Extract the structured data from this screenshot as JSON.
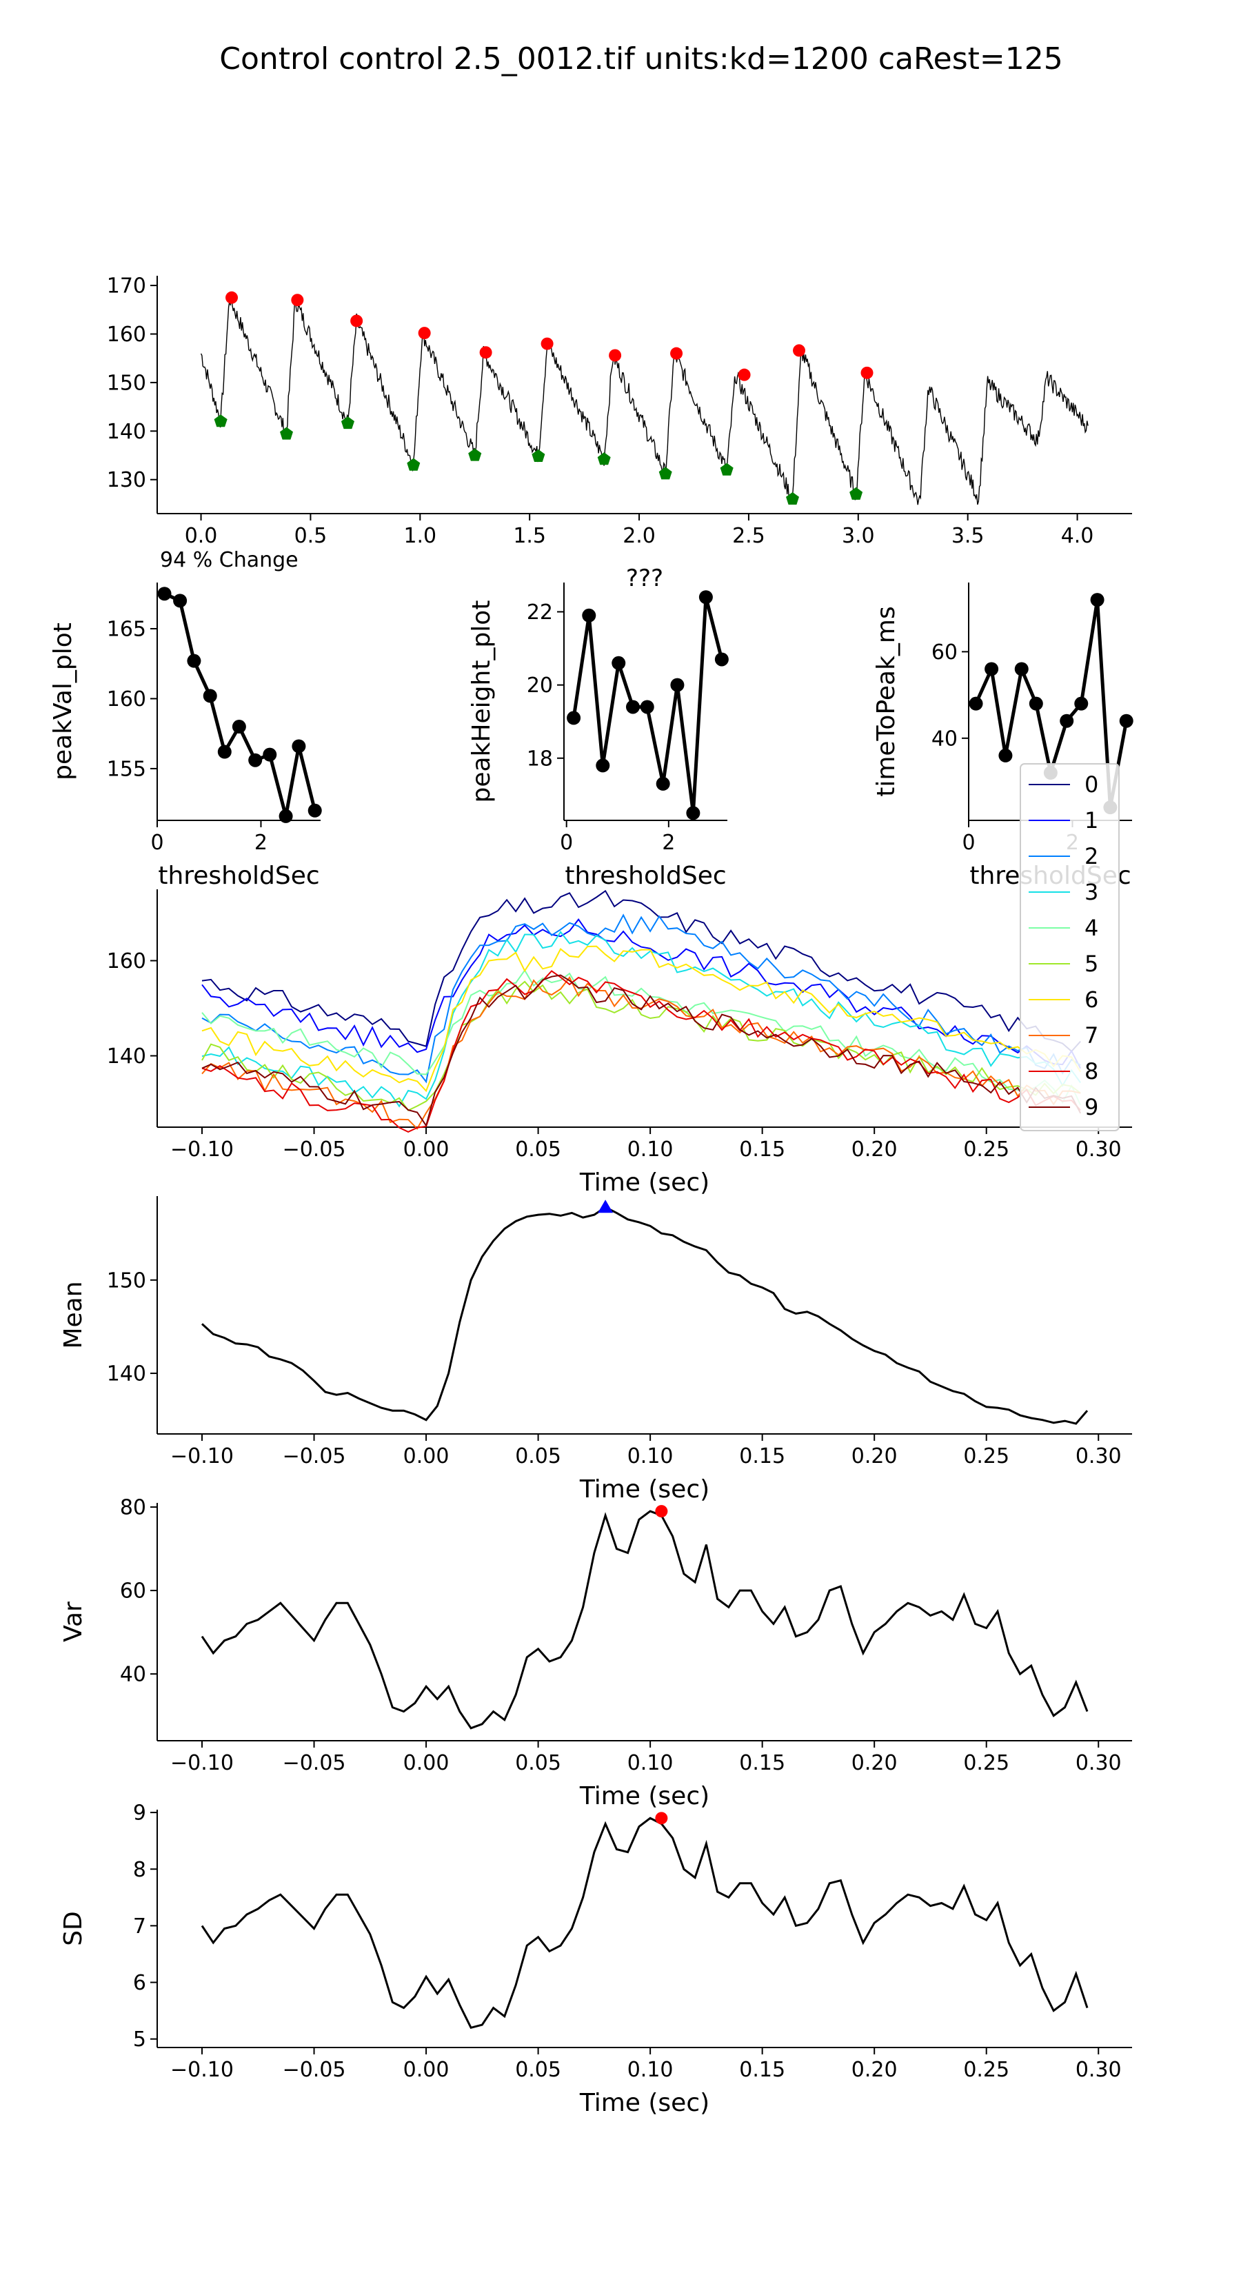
{
  "figure": {
    "title": "Control control 2.5_0012.tif units:kd=1200 caRest=125"
  },
  "chart_data": [
    {
      "id": "raw",
      "type": "line",
      "xlim": [
        -0.2,
        4.25
      ],
      "ylim": [
        123,
        172
      ],
      "xticks": [
        0.0,
        0.5,
        1.0,
        1.5,
        2.0,
        2.5,
        3.0,
        3.5,
        4.0
      ],
      "xtick_labels": [
        "0.0",
        "0.5",
        "1.0",
        "1.5",
        "2.0",
        "2.5",
        "3.0",
        "3.5",
        "4.0"
      ],
      "yticks": [
        130,
        140,
        150,
        160,
        170
      ],
      "xlabel": "",
      "ylabel": "",
      "annotation": "94 % Change",
      "peaks": {
        "color": "#ff0000",
        "x": [
          0.14,
          0.44,
          0.71,
          1.02,
          1.3,
          1.58,
          1.89,
          2.17,
          2.48,
          2.73,
          3.04
        ],
        "y": [
          167.5,
          167.0,
          162.7,
          160.2,
          156.2,
          158.0,
          155.6,
          156.0,
          151.6,
          156.6,
          152.0
        ]
      },
      "troughs": {
        "color": "#008000",
        "x": [
          0.09,
          0.39,
          0.67,
          0.97,
          1.25,
          1.54,
          1.84,
          2.12,
          2.4,
          2.7,
          2.99
        ],
        "y": [
          142.0,
          139.4,
          141.6,
          133.0,
          135.0,
          134.8,
          134.2,
          131.2,
          132.0,
          126.0,
          127.0
        ]
      },
      "trace_onsets": [
        0.09,
        0.39,
        0.67,
        0.97,
        1.25,
        1.54,
        1.84,
        2.12,
        2.4,
        2.7,
        2.99,
        3.28,
        3.55,
        3.82
      ],
      "trace_peaks": [
        167.5,
        167.0,
        162.7,
        160.2,
        156.2,
        158.0,
        155.6,
        156.0,
        151.6,
        156.6,
        152.0,
        149.0,
        150.0,
        151.0
      ],
      "trace_troughs": [
        142.0,
        139.4,
        141.6,
        133.0,
        135.0,
        134.8,
        134.2,
        131.2,
        132.0,
        126.0,
        127.0,
        125.0,
        126.0,
        138.0
      ]
    },
    {
      "id": "peakVal",
      "type": "line",
      "xlim": [
        0,
        3.15
      ],
      "ylim": [
        151.3,
        168.3
      ],
      "xticks": [
        0,
        2
      ],
      "xtick_labels": [
        "0",
        "2"
      ],
      "yticks": [
        155,
        160,
        165
      ],
      "xlabel": "thresholdSec",
      "ylabel": "peakVal_plot",
      "x": [
        0.14,
        0.44,
        0.71,
        1.02,
        1.3,
        1.58,
        1.89,
        2.17,
        2.48,
        2.73,
        3.04
      ],
      "y": [
        167.5,
        167.0,
        162.7,
        160.2,
        156.2,
        158.0,
        155.6,
        156.0,
        151.6,
        156.6,
        152.0
      ]
    },
    {
      "id": "peakHeight",
      "type": "line",
      "xlim": [
        -0.05,
        3.15
      ],
      "ylim": [
        16.3,
        22.8
      ],
      "xticks": [
        0,
        2
      ],
      "xtick_labels": [
        "0",
        "2"
      ],
      "yticks": [
        18,
        20,
        22
      ],
      "xlabel": "thresholdSec",
      "ylabel": "peakHeight_plot",
      "top_label": "???",
      "x": [
        0.14,
        0.44,
        0.71,
        1.02,
        1.3,
        1.58,
        1.89,
        2.17,
        2.48,
        2.73,
        3.04
      ],
      "y": [
        19.1,
        21.9,
        17.8,
        20.6,
        19.4,
        19.4,
        17.3,
        20.0,
        16.5,
        22.4,
        20.7
      ]
    },
    {
      "id": "timeToPeak",
      "type": "line",
      "xlim": [
        0,
        3.15
      ],
      "ylim": [
        21,
        76
      ],
      "xticks": [
        0,
        2
      ],
      "xtick_labels": [
        "0",
        "2"
      ],
      "yticks": [
        40,
        60
      ],
      "xlabel": "thresholdSec",
      "ylabel": "timeToPeak_ms",
      "x": [
        0.14,
        0.44,
        0.71,
        1.02,
        1.3,
        1.58,
        1.89,
        2.17,
        2.48,
        2.73,
        3.04
      ],
      "y": [
        48,
        56,
        36,
        56,
        48,
        32,
        44,
        48,
        72,
        24,
        44
      ]
    },
    {
      "id": "overlay",
      "type": "line",
      "xlim": [
        -0.12,
        0.315
      ],
      "ylim": [
        125,
        175
      ],
      "xticks": [
        -0.1,
        -0.05,
        0.0,
        0.05,
        0.1,
        0.15,
        0.2,
        0.25,
        0.3
      ],
      "xtick_labels": [
        "−0.10",
        "−0.05",
        "0.00",
        "0.05",
        "0.10",
        "0.15",
        "0.20",
        "0.25",
        "0.30"
      ],
      "yticks": [
        140,
        160
      ],
      "xlabel": "Time (sec)",
      "ylabel": "",
      "legend_position": "right",
      "series": [
        {
          "name": "0",
          "color": "#00007f",
          "pre": 156,
          "post_peak": 173,
          "end": 142,
          "tpeak": 0.08
        },
        {
          "name": "1",
          "color": "#0000ff",
          "pre": 153,
          "post_peak": 167,
          "end": 138,
          "tpeak": 0.07
        },
        {
          "name": "2",
          "color": "#0080ff",
          "pre": 148,
          "post_peak": 168,
          "end": 136,
          "tpeak": 0.1
        },
        {
          "name": "3",
          "color": "#15e0e6",
          "pre": 142,
          "post_peak": 165,
          "end": 134,
          "tpeak": 0.07
        },
        {
          "name": "4",
          "color": "#7cffa5",
          "pre": 149,
          "post_peak": 157,
          "end": 131,
          "tpeak": 0.06
        },
        {
          "name": "5",
          "color": "#9fe82a",
          "pre": 141,
          "post_peak": 154,
          "end": 131,
          "tpeak": 0.05
        },
        {
          "name": "6",
          "color": "#ffe600",
          "pre": 145,
          "post_peak": 162,
          "end": 137,
          "tpeak": 0.09
        },
        {
          "name": "7",
          "color": "#ff6a00",
          "pre": 138,
          "post_peak": 155,
          "end": 130,
          "tpeak": 0.06
        },
        {
          "name": "8",
          "color": "#e60000",
          "pre": 137,
          "post_peak": 156,
          "end": 128,
          "tpeak": 0.06
        },
        {
          "name": "9",
          "color": "#7f0000",
          "pre": 139,
          "post_peak": 155,
          "end": 129,
          "tpeak": 0.06
        }
      ]
    },
    {
      "id": "mean",
      "type": "line",
      "xlim": [
        -0.12,
        0.315
      ],
      "ylim": [
        133.5,
        159
      ],
      "xticks": [
        -0.1,
        -0.05,
        0.0,
        0.05,
        0.1,
        0.15,
        0.2,
        0.25,
        0.3
      ],
      "xtick_labels": [
        "−0.10",
        "−0.05",
        "0.00",
        "0.05",
        "0.10",
        "0.15",
        "0.20",
        "0.25",
        "0.30"
      ],
      "yticks": [
        140,
        150
      ],
      "xlabel": "Time (sec)",
      "ylabel": "Mean",
      "marker": {
        "x": 0.08,
        "y": 157.8,
        "shape": "triangle",
        "color": "#0000ff"
      },
      "x": [
        -0.1,
        -0.095,
        -0.09,
        -0.085,
        -0.08,
        -0.075,
        -0.07,
        -0.065,
        -0.06,
        -0.055,
        -0.05,
        -0.045,
        -0.04,
        -0.035,
        -0.03,
        -0.025,
        -0.02,
        -0.015,
        -0.01,
        -0.005,
        0.0,
        0.005,
        0.01,
        0.015,
        0.02,
        0.025,
        0.03,
        0.035,
        0.04,
        0.045,
        0.05,
        0.055,
        0.06,
        0.065,
        0.07,
        0.075,
        0.08,
        0.085,
        0.09,
        0.095,
        0.1,
        0.105,
        0.11,
        0.115,
        0.12,
        0.125,
        0.13,
        0.135,
        0.14,
        0.145,
        0.15,
        0.155,
        0.16,
        0.165,
        0.17,
        0.175,
        0.18,
        0.185,
        0.19,
        0.195,
        0.2,
        0.205,
        0.21,
        0.215,
        0.22,
        0.225,
        0.23,
        0.235,
        0.24,
        0.245,
        0.25,
        0.255,
        0.26,
        0.265,
        0.27,
        0.275,
        0.28,
        0.285,
        0.29,
        0.295
      ],
      "y": [
        145.3,
        144.2,
        143.8,
        143.2,
        143.1,
        142.8,
        141.8,
        141.5,
        141.1,
        140.3,
        139.2,
        138.0,
        137.7,
        137.9,
        137.3,
        136.8,
        136.3,
        136.0,
        136.0,
        135.6,
        135.0,
        136.5,
        140.0,
        145.5,
        150.0,
        152.5,
        154.2,
        155.5,
        156.3,
        156.8,
        157.0,
        157.1,
        156.9,
        157.2,
        156.7,
        157.0,
        157.8,
        157.2,
        156.5,
        156.2,
        155.8,
        155.0,
        154.8,
        154.1,
        153.6,
        153.2,
        151.9,
        150.8,
        150.5,
        149.6,
        149.2,
        148.6,
        146.9,
        146.4,
        146.6,
        146.1,
        145.3,
        144.6,
        143.7,
        143.0,
        142.4,
        142.0,
        141.1,
        140.6,
        140.2,
        139.1,
        138.6,
        138.1,
        137.8,
        137.0,
        136.4,
        136.3,
        136.1,
        135.5,
        135.2,
        135.0,
        134.7,
        134.9,
        134.6,
        136.0
      ]
    },
    {
      "id": "var",
      "type": "line",
      "xlim": [
        -0.12,
        0.315
      ],
      "ylim": [
        24,
        81
      ],
      "xticks": [
        -0.1,
        -0.05,
        0.0,
        0.05,
        0.1,
        0.15,
        0.2,
        0.25,
        0.3
      ],
      "xtick_labels": [
        "−0.10",
        "−0.05",
        "0.00",
        "0.05",
        "0.10",
        "0.15",
        "0.20",
        "0.25",
        "0.30"
      ],
      "yticks": [
        40,
        60,
        80
      ],
      "xlabel": "Time (sec)",
      "ylabel": "Var",
      "marker": {
        "x": 0.105,
        "y": 79,
        "shape": "circle",
        "color": "#ff0000"
      },
      "x": [
        -0.1,
        -0.095,
        -0.09,
        -0.085,
        -0.08,
        -0.075,
        -0.07,
        -0.065,
        -0.06,
        -0.055,
        -0.05,
        -0.045,
        -0.04,
        -0.035,
        -0.03,
        -0.025,
        -0.02,
        -0.015,
        -0.01,
        -0.005,
        0.0,
        0.005,
        0.01,
        0.015,
        0.02,
        0.025,
        0.03,
        0.035,
        0.04,
        0.045,
        0.05,
        0.055,
        0.06,
        0.065,
        0.07,
        0.075,
        0.08,
        0.085,
        0.09,
        0.095,
        0.1,
        0.105,
        0.11,
        0.115,
        0.12,
        0.125,
        0.13,
        0.135,
        0.14,
        0.145,
        0.15,
        0.155,
        0.16,
        0.165,
        0.17,
        0.175,
        0.18,
        0.185,
        0.19,
        0.195,
        0.2,
        0.205,
        0.21,
        0.215,
        0.22,
        0.225,
        0.23,
        0.235,
        0.24,
        0.245,
        0.25,
        0.255,
        0.26,
        0.265,
        0.27,
        0.275,
        0.28,
        0.285,
        0.29,
        0.295
      ],
      "y": [
        49,
        45,
        48,
        49,
        52,
        53,
        55,
        57,
        54,
        51,
        48,
        53,
        57,
        57,
        52,
        47,
        40,
        32,
        31,
        33,
        37,
        34,
        37,
        31,
        27,
        28,
        31,
        29,
        35,
        44,
        46,
        43,
        44,
        48,
        56,
        69,
        78,
        70,
        69,
        77,
        79,
        78,
        73,
        64,
        62,
        71,
        58,
        56,
        60,
        60,
        55,
        52,
        56,
        49,
        50,
        53,
        60,
        61,
        52,
        45,
        50,
        52,
        55,
        57,
        56,
        54,
        55,
        53,
        59,
        52,
        51,
        55,
        45,
        40,
        42,
        35,
        30,
        32,
        38,
        31
      ]
    },
    {
      "id": "sd",
      "type": "line",
      "xlim": [
        -0.12,
        0.315
      ],
      "ylim": [
        4.85,
        9.05
      ],
      "xticks": [
        -0.1,
        -0.05,
        0.0,
        0.05,
        0.1,
        0.15,
        0.2,
        0.25,
        0.3
      ],
      "xtick_labels": [
        "−0.10",
        "−0.05",
        "0.00",
        "0.05",
        "0.10",
        "0.15",
        "0.20",
        "0.25",
        "0.30"
      ],
      "yticks": [
        5,
        6,
        7,
        8,
        9
      ],
      "xlabel": "Time (sec)",
      "ylabel": "SD",
      "marker": {
        "x": 0.105,
        "y": 8.9,
        "shape": "circle",
        "color": "#ff0000"
      },
      "x": [
        -0.1,
        -0.095,
        -0.09,
        -0.085,
        -0.08,
        -0.075,
        -0.07,
        -0.065,
        -0.06,
        -0.055,
        -0.05,
        -0.045,
        -0.04,
        -0.035,
        -0.03,
        -0.025,
        -0.02,
        -0.015,
        -0.01,
        -0.005,
        0.0,
        0.005,
        0.01,
        0.015,
        0.02,
        0.025,
        0.03,
        0.035,
        0.04,
        0.045,
        0.05,
        0.055,
        0.06,
        0.065,
        0.07,
        0.075,
        0.08,
        0.085,
        0.09,
        0.095,
        0.1,
        0.105,
        0.11,
        0.115,
        0.12,
        0.125,
        0.13,
        0.135,
        0.14,
        0.145,
        0.15,
        0.155,
        0.16,
        0.165,
        0.17,
        0.175,
        0.18,
        0.185,
        0.19,
        0.195,
        0.2,
        0.205,
        0.21,
        0.215,
        0.22,
        0.225,
        0.23,
        0.235,
        0.24,
        0.245,
        0.25,
        0.255,
        0.26,
        0.265,
        0.27,
        0.275,
        0.28,
        0.285,
        0.29,
        0.295
      ],
      "y": [
        7.0,
        6.7,
        6.95,
        7.0,
        7.2,
        7.3,
        7.45,
        7.55,
        7.35,
        7.15,
        6.95,
        7.3,
        7.55,
        7.55,
        7.2,
        6.85,
        6.3,
        5.65,
        5.55,
        5.75,
        6.1,
        5.8,
        6.05,
        5.6,
        5.2,
        5.25,
        5.55,
        5.4,
        5.95,
        6.65,
        6.8,
        6.55,
        6.65,
        6.95,
        7.5,
        8.3,
        8.8,
        8.35,
        8.3,
        8.75,
        8.9,
        8.8,
        8.55,
        8.0,
        7.85,
        8.45,
        7.6,
        7.5,
        7.75,
        7.75,
        7.4,
        7.2,
        7.5,
        7.0,
        7.05,
        7.3,
        7.75,
        7.8,
        7.2,
        6.7,
        7.05,
        7.2,
        7.4,
        7.55,
        7.5,
        7.35,
        7.4,
        7.3,
        7.7,
        7.2,
        7.1,
        7.4,
        6.7,
        6.3,
        6.5,
        5.9,
        5.5,
        5.65,
        6.15,
        5.55
      ]
    }
  ]
}
